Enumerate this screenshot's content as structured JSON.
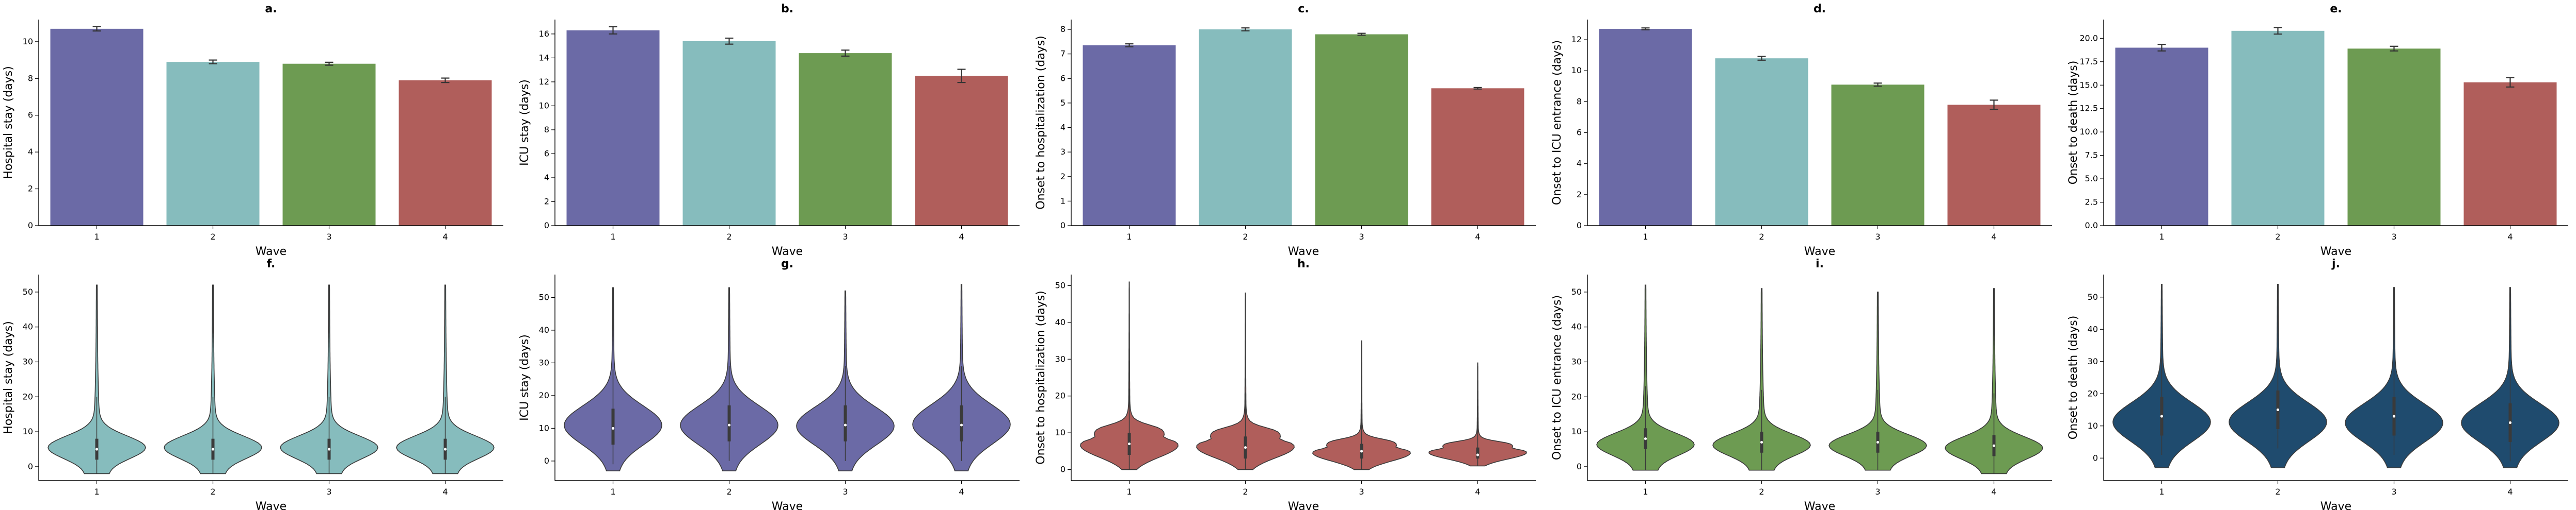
{
  "colors": {
    "wave1": "#6b6aa6",
    "wave2": "#86bcbd",
    "wave3": "#6d9b52",
    "wave4": "#b05e5b",
    "navy": "#1f4b6e"
  },
  "chart_data": [
    {
      "panel": "a.",
      "type": "bar",
      "categories": [
        "1",
        "2",
        "3",
        "4"
      ],
      "values": [
        10.7,
        8.9,
        8.8,
        7.9
      ],
      "errors": [
        0.12,
        0.1,
        0.08,
        0.12
      ],
      "colors": [
        "#6b6aa6",
        "#86bcbd",
        "#6d9b52",
        "#b05e5b"
      ],
      "xlabel": "Wave",
      "ylabel": "Hospital stay (days)",
      "ylim": [
        0,
        11.2
      ],
      "yticks": [
        0,
        2,
        4,
        6,
        8,
        10
      ],
      "tick_labels": [
        "0",
        "2",
        "4",
        "6",
        "8",
        "10"
      ]
    },
    {
      "panel": "b.",
      "type": "bar",
      "categories": [
        "1",
        "2",
        "3",
        "4"
      ],
      "values": [
        16.3,
        15.4,
        14.4,
        12.5
      ],
      "errors": [
        0.3,
        0.25,
        0.25,
        0.55
      ],
      "colors": [
        "#6b6aa6",
        "#86bcbd",
        "#6d9b52",
        "#b05e5b"
      ],
      "xlabel": "Wave",
      "ylabel": "ICU stay (days)",
      "ylim": [
        0,
        17.2
      ],
      "yticks": [
        0,
        2,
        4,
        6,
        8,
        10,
        12,
        14,
        16
      ],
      "tick_labels": [
        "0",
        "2",
        "4",
        "6",
        "8",
        "10",
        "12",
        "14",
        "16"
      ]
    },
    {
      "panel": "c.",
      "type": "bar",
      "categories": [
        "1",
        "2",
        "3",
        "4"
      ],
      "values": [
        7.35,
        8.0,
        7.8,
        5.6
      ],
      "errors": [
        0.06,
        0.06,
        0.04,
        0.03
      ],
      "colors": [
        "#6b6aa6",
        "#86bcbd",
        "#6d9b52",
        "#b05e5b"
      ],
      "xlabel": "Wave",
      "ylabel": "Onset to hospitalization (days)",
      "ylim": [
        0,
        8.4
      ],
      "yticks": [
        0,
        1,
        2,
        3,
        4,
        5,
        6,
        7,
        8
      ],
      "tick_labels": [
        "0",
        "1",
        "2",
        "3",
        "4",
        "5",
        "6",
        "7",
        "8"
      ]
    },
    {
      "panel": "d.",
      "type": "bar",
      "categories": [
        "1",
        "2",
        "3",
        "4"
      ],
      "values": [
        12.7,
        10.8,
        9.1,
        7.8
      ],
      "errors": [
        0.06,
        0.12,
        0.1,
        0.3
      ],
      "colors": [
        "#6b6aa6",
        "#86bcbd",
        "#6d9b52",
        "#b05e5b"
      ],
      "xlabel": "Wave",
      "ylabel": "Onset to ICU entrance (days)",
      "ylim": [
        0,
        13.3
      ],
      "yticks": [
        0,
        2,
        4,
        6,
        8,
        10,
        12
      ],
      "tick_labels": [
        "0",
        "2",
        "4",
        "6",
        "8",
        "10",
        "12"
      ]
    },
    {
      "panel": "e.",
      "type": "bar",
      "categories": [
        "1",
        "2",
        "3",
        "4"
      ],
      "values": [
        19.0,
        20.8,
        18.9,
        15.3
      ],
      "errors": [
        0.35,
        0.35,
        0.25,
        0.5
      ],
      "colors": [
        "#6b6aa6",
        "#86bcbd",
        "#6d9b52",
        "#b05e5b"
      ],
      "xlabel": "Wave",
      "ylabel": "Onset to death (days)",
      "ylim": [
        0,
        22.0
      ],
      "yticks": [
        0,
        2.5,
        5,
        7.5,
        10,
        12.5,
        15,
        17.5,
        20
      ],
      "tick_labels": [
        "0.0",
        "2.5",
        "5.0",
        "7.5",
        "10.0",
        "12.5",
        "15.0",
        "17.5",
        "20.0"
      ]
    },
    {
      "panel": "f.",
      "type": "violin",
      "categories": [
        "1",
        "2",
        "3",
        "4"
      ],
      "color": "#86bcbd",
      "shape": "skewed",
      "min": [
        -2,
        -2,
        -2,
        -2
      ],
      "max": [
        52,
        52,
        52,
        52
      ],
      "median": [
        5,
        5,
        5,
        5
      ],
      "q1": [
        2,
        2,
        2,
        2
      ],
      "q3": [
        8,
        8,
        8,
        8
      ],
      "xlabel": "Wave",
      "ylabel": "Hospital stay (days)",
      "ylim": [
        -4,
        55
      ],
      "yticks": [
        0,
        10,
        20,
        30,
        40,
        50
      ],
      "tick_labels": [
        "0",
        "10",
        "20",
        "30",
        "40",
        "50"
      ]
    },
    {
      "panel": "g.",
      "type": "violin",
      "categories": [
        "1",
        "2",
        "3",
        "4"
      ],
      "color": "#6b6aa6",
      "shape": "broad",
      "min": [
        -3,
        -3,
        -3,
        -3
      ],
      "max": [
        53,
        53,
        52,
        54
      ],
      "median": [
        10,
        11,
        11,
        11
      ],
      "q1": [
        5,
        6,
        6,
        6
      ],
      "q3": [
        16,
        17,
        17,
        17
      ],
      "xlabel": "Wave",
      "ylabel": "ICU stay (days)",
      "ylim": [
        -6,
        57
      ],
      "yticks": [
        0,
        10,
        20,
        30,
        40,
        50
      ],
      "tick_labels": [
        "0",
        "10",
        "20",
        "30",
        "40",
        "50"
      ]
    },
    {
      "panel": "h.",
      "type": "violin",
      "categories": [
        "1",
        "2",
        "3",
        "4"
      ],
      "color": "#b05e5b",
      "shape": "onset",
      "min": [
        0,
        0,
        0,
        1
      ],
      "max": [
        51,
        48,
        35,
        29
      ],
      "median": [
        7,
        6,
        5,
        4
      ],
      "q1": [
        4,
        3,
        3,
        3
      ],
      "q3": [
        10,
        9,
        7,
        6
      ],
      "xlabel": "Wave",
      "ylabel": "Onset to hospitalization (days)",
      "ylim": [
        -3,
        53
      ],
      "yticks": [
        0,
        10,
        20,
        30,
        40,
        50
      ],
      "tick_labels": [
        "0",
        "10",
        "20",
        "30",
        "40",
        "50"
      ]
    },
    {
      "panel": "i.",
      "type": "violin",
      "categories": [
        "1",
        "2",
        "3",
        "4"
      ],
      "color": "#6d9b52",
      "shape": "skewed",
      "min": [
        -1,
        -1,
        -1,
        -2
      ],
      "max": [
        52,
        51,
        50,
        51
      ],
      "median": [
        8,
        7,
        7,
        6
      ],
      "q1": [
        5,
        4,
        4,
        3
      ],
      "q3": [
        11,
        10,
        10,
        9
      ],
      "xlabel": "Wave",
      "ylabel": "Onset to ICU entrance (days)",
      "ylim": [
        -4,
        55
      ],
      "yticks": [
        0,
        10,
        20,
        30,
        40,
        50
      ],
      "tick_labels": [
        "0",
        "10",
        "20",
        "30",
        "40",
        "50"
      ]
    },
    {
      "panel": "j.",
      "type": "violin",
      "categories": [
        "1",
        "2",
        "3",
        "4"
      ],
      "color": "#1f4b6e",
      "shape": "broad",
      "min": [
        -3,
        -3,
        -3,
        -3
      ],
      "max": [
        54,
        54,
        53,
        53
      ],
      "median": [
        13,
        15,
        13,
        11
      ],
      "q1": [
        7,
        9,
        7,
        5
      ],
      "q3": [
        19,
        21,
        19,
        17
      ],
      "xlabel": "Wave",
      "ylabel": "Onset to death (days)",
      "ylim": [
        -7,
        57
      ],
      "yticks": [
        0,
        10,
        20,
        30,
        40,
        50
      ],
      "tick_labels": [
        "0",
        "10",
        "20",
        "30",
        "40",
        "50"
      ]
    }
  ]
}
